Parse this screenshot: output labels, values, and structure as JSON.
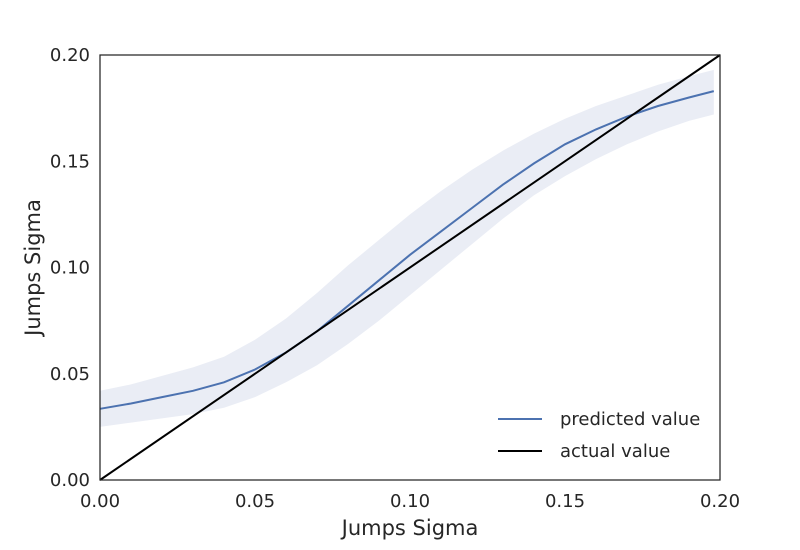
{
  "chart_data": {
    "type": "line",
    "title": "",
    "xlabel": "Jumps Sigma",
    "ylabel": "Jumps Sigma",
    "xlim": [
      0.0,
      0.2
    ],
    "ylim": [
      0.0,
      0.2
    ],
    "x_ticks": [
      "0.00",
      "0.05",
      "0.10",
      "0.15",
      "0.20"
    ],
    "y_ticks": [
      "0.00",
      "0.05",
      "0.10",
      "0.15",
      "0.20"
    ],
    "grid": false,
    "legend_position": "bottom-right",
    "colors": {
      "predicted": "#4c72b0",
      "band": "#eaedf5",
      "actual": "#000000",
      "axes": "#262626"
    },
    "series": [
      {
        "name": "predicted value",
        "x": [
          0.0,
          0.01,
          0.02,
          0.03,
          0.04,
          0.05,
          0.06,
          0.07,
          0.08,
          0.09,
          0.1,
          0.11,
          0.12,
          0.13,
          0.14,
          0.15,
          0.16,
          0.17,
          0.18,
          0.19,
          0.198
        ],
        "y": [
          0.0335,
          0.036,
          0.039,
          0.042,
          0.046,
          0.052,
          0.06,
          0.07,
          0.082,
          0.094,
          0.106,
          0.117,
          0.128,
          0.139,
          0.149,
          0.158,
          0.165,
          0.171,
          0.176,
          0.18,
          0.183
        ],
        "lower": [
          0.025,
          0.027,
          0.029,
          0.031,
          0.034,
          0.039,
          0.046,
          0.054,
          0.064,
          0.075,
          0.087,
          0.099,
          0.111,
          0.123,
          0.134,
          0.143,
          0.151,
          0.158,
          0.164,
          0.169,
          0.172
        ],
        "upper": [
          0.042,
          0.045,
          0.049,
          0.053,
          0.058,
          0.066,
          0.076,
          0.088,
          0.101,
          0.113,
          0.125,
          0.136,
          0.146,
          0.155,
          0.163,
          0.17,
          0.176,
          0.181,
          0.186,
          0.19,
          0.193
        ]
      },
      {
        "name": "actual value",
        "x": [
          0.0,
          0.2
        ],
        "y": [
          0.0,
          0.2
        ]
      }
    ]
  }
}
